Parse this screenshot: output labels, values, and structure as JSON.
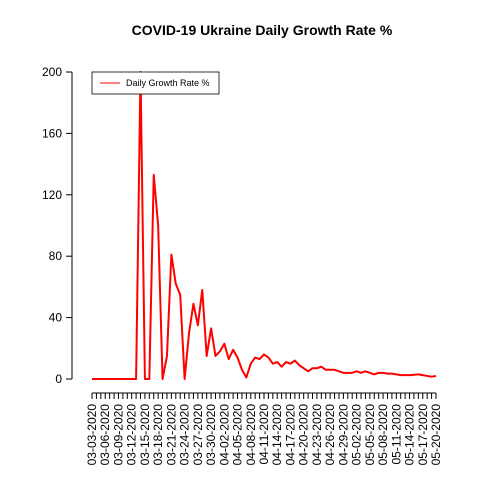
{
  "chart_data": {
    "type": "line",
    "title": "COVID-19 Ukraine Daily Growth Rate %",
    "xlabel": "",
    "ylabel": "",
    "ylim": [
      0,
      200
    ],
    "yticks": [
      0,
      40,
      80,
      120,
      160,
      200
    ],
    "x_start": "03-03-2020",
    "x_end": "05-20-2020",
    "x_tick_labels": [
      "03-03-2020",
      "03-06-2020",
      "03-09-2020",
      "03-12-2020",
      "03-15-2020",
      "03-18-2020",
      "03-21-2020",
      "03-24-2020",
      "03-27-2020",
      "03-30-2020",
      "04-02-2020",
      "04-05-2020",
      "04-08-2020",
      "04-11-2020",
      "04-14-2020",
      "04-17-2020",
      "04-20-2020",
      "04-23-2020",
      "04-26-2020",
      "04-29-2020",
      "05-02-2020",
      "05-05-2020",
      "05-08-2020",
      "05-11-2020",
      "05-14-2020",
      "05-17-2020",
      "05-20-2020"
    ],
    "grid": false,
    "legend_position": "top-left",
    "series": [
      {
        "name": "Daily Growth Rate %",
        "color": "#ff0000",
        "values": [
          0,
          0,
          0,
          0,
          0,
          0,
          0,
          0,
          0,
          0,
          0,
          200,
          0,
          0,
          133,
          100,
          0,
          15,
          81,
          62,
          55,
          0,
          30,
          49,
          35,
          58,
          15,
          33,
          15,
          18,
          23,
          13,
          19,
          14,
          6,
          1,
          10,
          14,
          13,
          16,
          14,
          10,
          11,
          8,
          11,
          10,
          12,
          9,
          7,
          5,
          7,
          7,
          8,
          6,
          6,
          6,
          5,
          4,
          4,
          4,
          5,
          4,
          5,
          4,
          3,
          4,
          4,
          3.5,
          3.5,
          3,
          2.5,
          2.5,
          2.5,
          2.8,
          3,
          2.5,
          2,
          1.5,
          2
        ]
      }
    ]
  }
}
